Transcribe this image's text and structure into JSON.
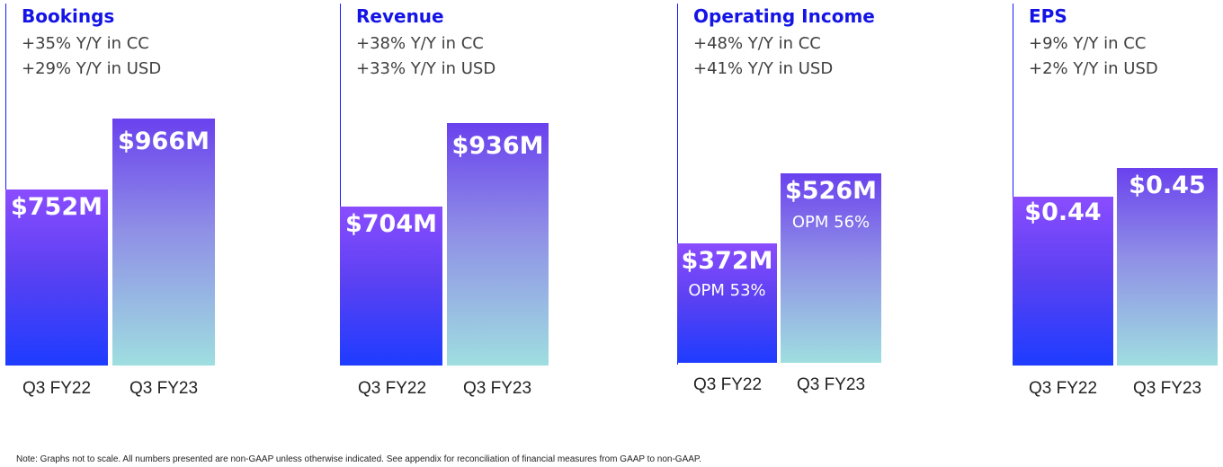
{
  "chart_data": [
    {
      "type": "bar",
      "title": "Bookings",
      "subtitle": [
        "+35% Y/Y in CC",
        "+29% Y/Y in USD"
      ],
      "categories": [
        "Q3 FY22",
        "Q3 FY23"
      ],
      "values": [
        752,
        966
      ],
      "labels": [
        "$752M",
        "$966M"
      ],
      "unit": "$M"
    },
    {
      "type": "bar",
      "title": "Revenue",
      "subtitle": [
        "+38% Y/Y in CC",
        "+33% Y/Y in USD"
      ],
      "categories": [
        "Q3 FY22",
        "Q3 FY23"
      ],
      "values": [
        704,
        936
      ],
      "labels": [
        "$704M",
        "$936M"
      ],
      "unit": "$M"
    },
    {
      "type": "bar",
      "title": "Operating Income",
      "subtitle": [
        "+48% Y/Y in CC",
        "+41% Y/Y in USD"
      ],
      "categories": [
        "Q3 FY22",
        "Q3 FY23"
      ],
      "values": [
        372,
        526
      ],
      "labels": [
        "$372M",
        "$526M"
      ],
      "annotations": [
        "OPM 53%",
        "OPM 56%"
      ],
      "unit": "$M"
    },
    {
      "type": "bar",
      "title": "EPS",
      "subtitle": [
        "+9% Y/Y in CC",
        "+2% Y/Y in USD"
      ],
      "categories": [
        "Q3 FY22",
        "Q3 FY23"
      ],
      "values": [
        0.44,
        0.45
      ],
      "labels": [
        "$0.44",
        "$0.45"
      ],
      "unit": "$"
    }
  ],
  "note": "Note: Graphs not to scale. All numbers presented are non-GAAP unless otherwise indicated. See appendix for reconciliation of financial measures from GAAP to non-GAAP.",
  "colors": {
    "title": "#1414e6",
    "axis": "#1a1aff",
    "bar_prior_top": "#8a4dff",
    "bar_prior_bottom": "#1e3cff",
    "bar_current_top": "#6a41ee",
    "bar_current_bottom": "#9fdee0"
  }
}
